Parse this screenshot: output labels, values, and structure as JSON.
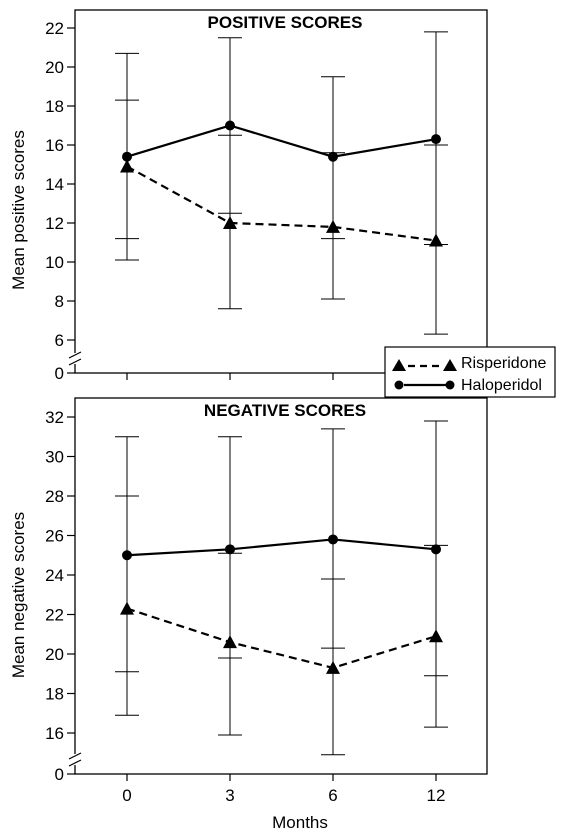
{
  "chart_data": [
    {
      "type": "line",
      "title": "POSITIVE SCORES",
      "ylabel": "Mean positive scores",
      "xlabel": "",
      "x": [
        0,
        3,
        6,
        12
      ],
      "x_tick_labels": [
        "0",
        "3",
        "6",
        "12"
      ],
      "ylim": [
        0,
        22
      ],
      "y_ticks": [
        6,
        8,
        10,
        12,
        14,
        16,
        18,
        20,
        22
      ],
      "y_axis_break_between": [
        0,
        6
      ],
      "y_ticks_extra": [
        0
      ],
      "series": [
        {
          "name": "Risperidone",
          "marker": "triangle",
          "line_style": "dashed",
          "values": [
            14.9,
            12.0,
            11.8,
            11.1
          ],
          "error_low": [
            11.2,
            7.6,
            8.1,
            6.3
          ],
          "error_high": [
            18.3,
            16.5,
            15.6,
            16.0
          ]
        },
        {
          "name": "Haloperidol",
          "marker": "circle",
          "line_style": "solid",
          "values": [
            15.4,
            17.0,
            15.4,
            16.3
          ],
          "error_low": [
            10.1,
            12.5,
            11.2,
            10.9
          ],
          "error_high": [
            20.7,
            21.5,
            19.5,
            21.8
          ]
        }
      ]
    },
    {
      "type": "line",
      "title": "NEGATIVE SCORES",
      "ylabel": "Mean negative scores",
      "xlabel": "Months",
      "x": [
        0,
        3,
        6,
        12
      ],
      "x_tick_labels": [
        "0",
        "3",
        "6",
        "12"
      ],
      "ylim": [
        0,
        32
      ],
      "y_ticks": [
        16,
        18,
        20,
        22,
        24,
        26,
        28,
        30,
        32
      ],
      "y_axis_break_between": [
        0,
        16
      ],
      "y_ticks_extra": [
        0
      ],
      "series": [
        {
          "name": "Risperidone",
          "marker": "triangle",
          "line_style": "dashed",
          "values": [
            22.3,
            20.6,
            19.3,
            20.9
          ],
          "error_low": [
            16.9,
            15.9,
            14.9,
            16.3
          ],
          "error_high": [
            28.0,
            25.1,
            23.8,
            25.5
          ]
        },
        {
          "name": "Haloperidol",
          "marker": "circle",
          "line_style": "solid",
          "values": [
            25.0,
            25.3,
            25.8,
            25.3
          ],
          "error_low": [
            19.1,
            19.8,
            20.3,
            18.9
          ],
          "error_high": [
            31.0,
            31.0,
            31.4,
            31.8
          ]
        }
      ]
    }
  ],
  "legend": {
    "items": [
      {
        "label": "Risperidone",
        "marker": "triangle",
        "line_style": "dashed"
      },
      {
        "label": "Haloperidol",
        "marker": "circle",
        "line_style": "solid"
      }
    ],
    "placement": "right, between panels"
  }
}
